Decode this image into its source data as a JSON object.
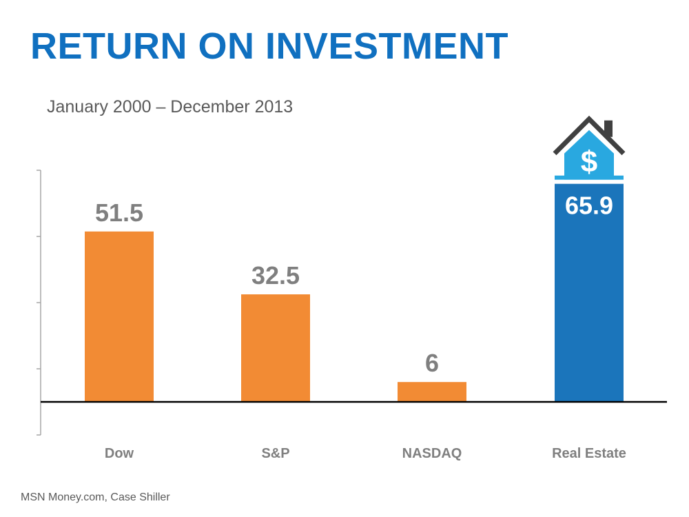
{
  "title": "RETURN ON INVESTMENT",
  "subtitle": "January 2000 – December 2013",
  "source": "MSN Money.com,  Case Shiller",
  "colors": {
    "title": "#1070C0",
    "orange": "#F28B34",
    "blue": "#1B75BB",
    "value_gray": "#7F7F7F",
    "value_white": "#FFFFFF",
    "house_roof": "#404040",
    "house_body": "#29A8E0"
  },
  "chart_data": {
    "type": "bar",
    "categories": [
      "Dow",
      "S&P",
      "NASDAQ",
      "Real Estate"
    ],
    "values": [
      51.5,
      32.5,
      6,
      65.9
    ],
    "value_labels": [
      "51.5",
      "32.5",
      "6",
      "65.9"
    ],
    "bar_colors": [
      "#F28B34",
      "#F28B34",
      "#F28B34",
      "#1B75BB"
    ],
    "ylim": [
      -10,
      70
    ],
    "grid": false,
    "legend": "none",
    "highlight": {
      "category": "Real Estate",
      "icon": "house-dollar-icon",
      "icon_symbol": "$"
    }
  }
}
